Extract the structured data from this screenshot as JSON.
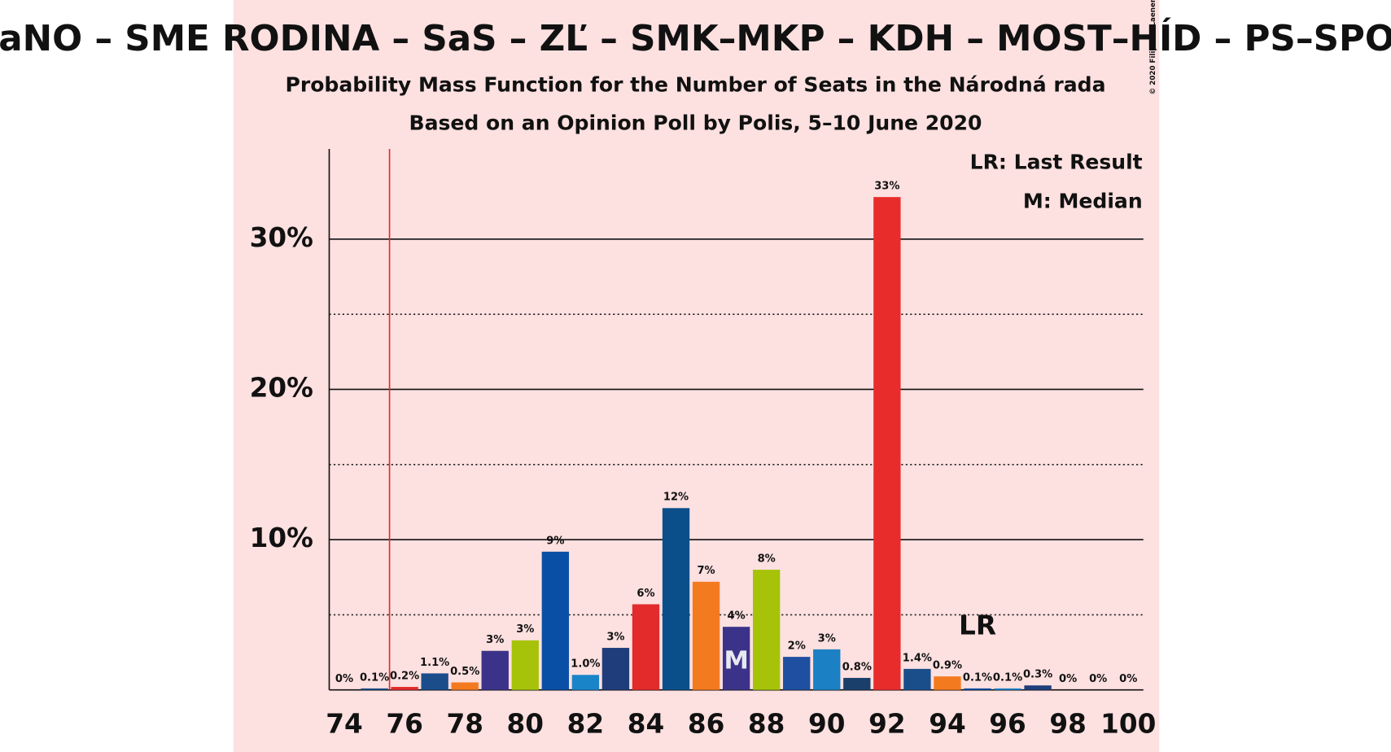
{
  "chart_data": {
    "type": "bar",
    "title": "OĽaNO – SME RODINA – SaS – ZĽ – SMK–MKP – KDH – MOST–HÍD – PS–SPOLU",
    "subtitle": "Probability Mass Function for the Number of Seats in the Národná rada",
    "subtitle2": "Based on an Opinion Poll by Polis, 5–10 June 2020",
    "copyright": "© 2020 Filip van Laenen",
    "legend_lr": "LR: Last Result",
    "legend_median": "M: Median",
    "lr_label": "LR",
    "lr_seat": 95,
    "median_label": "M",
    "median_seat": 87,
    "majority_seat": 76,
    "x": [
      74,
      75,
      76,
      77,
      78,
      79,
      80,
      81,
      82,
      83,
      84,
      85,
      86,
      87,
      88,
      89,
      90,
      91,
      92,
      93,
      94,
      95,
      96,
      97,
      98,
      99,
      100
    ],
    "values": [
      0,
      0.1,
      0.2,
      1.1,
      0.5,
      2.6,
      3.3,
      9.2,
      1.0,
      2.8,
      5.7,
      12.1,
      7.2,
      4.2,
      8.0,
      2.2,
      2.7,
      0.8,
      32.8,
      1.4,
      0.9,
      0.1,
      0.1,
      0.3,
      0,
      0,
      0
    ],
    "value_labels": [
      "0%",
      "0.1%",
      "0.2%",
      "1.1%",
      "0.5%",
      "3%",
      "3%",
      "9%",
      "1.0%",
      "3%",
      "6%",
      "12%",
      "7%",
      "4%",
      "8%",
      "2%",
      "3%",
      "0.8%",
      "33%",
      "1.4%",
      "0.9%",
      "0.1%",
      "0.1%",
      "0.3%",
      "0%",
      "0%",
      "0%"
    ],
    "colors": [
      "#1b4d8a",
      "#1b4d8a",
      "#e32b2b",
      "#1b4d8a",
      "#f47a20",
      "#3b3389",
      "#a6c30a",
      "#0a4fa6",
      "#1a84c8",
      "#1f3d7a",
      "#e32b2b",
      "#0a4f8a",
      "#f47a20",
      "#3b3389",
      "#a6c30a",
      "#1f4fa0",
      "#1c80c4",
      "#1a3f6a",
      "#e82c2c",
      "#1a4e8a",
      "#f47a20",
      "#0a4fa6",
      "#1a84c8",
      "#1f3d7a",
      "#1b4d8a",
      "#1b4d8a",
      "#1b4d8a"
    ],
    "xlim": [
      73.5,
      100.5
    ],
    "xticks": [
      74,
      76,
      78,
      80,
      82,
      84,
      86,
      88,
      90,
      92,
      94,
      96,
      98,
      100
    ],
    "ylim": [
      0,
      36
    ],
    "yticks": [
      {
        "value": 10,
        "label": "10%"
      },
      {
        "value": 20,
        "label": "20%"
      },
      {
        "value": 30,
        "label": "30%"
      }
    ],
    "minor_yticks": [
      5,
      15,
      25
    ],
    "grid": true
  }
}
